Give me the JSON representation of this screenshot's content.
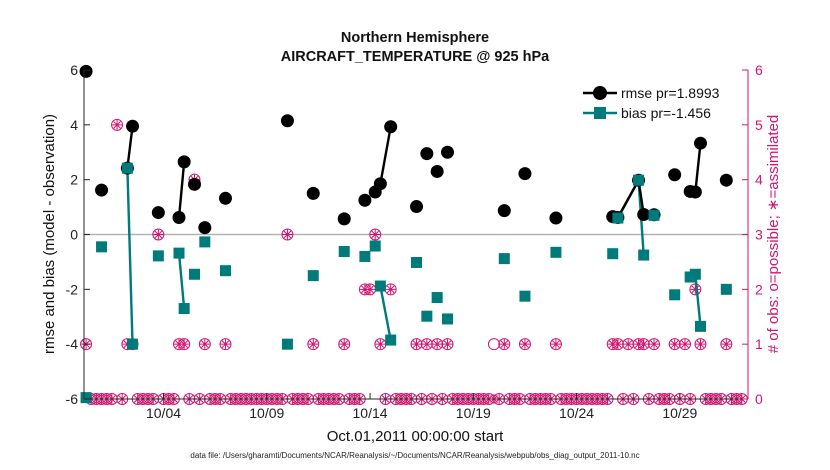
{
  "chart_data": {
    "type": "scatter",
    "title": "Northern Hemisphere",
    "subtitle": "AIRCRAFT_TEMPERATURE @ 925 hPa",
    "xlabel": "Oct.01,2011 00:00:00 start",
    "ylabel": "rmse and bias (model - observation)",
    "ylabel_right": "# of obs: o=possible; ∗=assimilated",
    "footnote": "data file: /Users/gharamti/Documents/NCAR/Reanalysis/~/Documents/NCAR/Reanalysis/webpub/obs_diag_output_2011-10.nc",
    "xlim": [
      0.15,
      32.3
    ],
    "ylim": [
      -6,
      6
    ],
    "ylim_right": [
      0,
      6
    ],
    "x_tick_values": [
      4,
      9,
      14,
      19,
      24,
      29
    ],
    "x_tick_labels": [
      "10/04",
      "10/09",
      "10/14",
      "10/19",
      "10/24",
      "10/29"
    ],
    "y_ticks": [
      -6,
      -4,
      -2,
      0,
      2,
      4,
      6
    ],
    "y_ticks_right": [
      0,
      1,
      2,
      3,
      4,
      5,
      6
    ],
    "legend_position": "top-right",
    "colors": {
      "rmse": "#000000",
      "bias": "#007a7a",
      "obs": "#d1166f",
      "zero_line": "#b3b3b3",
      "axes": "#262626"
    },
    "series": [
      {
        "name": "rmse pr=1.8993",
        "marker": "circle",
        "points": [
          [
            0.25,
            5.95
          ],
          [
            1,
            1.62
          ],
          [
            2.25,
            2.42
          ],
          [
            2.5,
            3.95
          ],
          [
            3.75,
            0.8
          ],
          [
            4.75,
            0.62
          ],
          [
            5,
            2.65
          ],
          [
            5.5,
            1.83
          ],
          [
            6,
            0.25
          ],
          [
            7,
            1.32
          ],
          [
            10,
            4.15
          ],
          [
            11.25,
            1.5
          ],
          [
            12.75,
            0.57
          ],
          [
            13.75,
            1.25
          ],
          [
            14.25,
            1.55
          ],
          [
            14.5,
            1.85
          ],
          [
            15,
            3.93
          ],
          [
            16.25,
            1.02
          ],
          [
            16.75,
            2.95
          ],
          [
            17.25,
            2.3
          ],
          [
            17.75,
            3.0
          ],
          [
            20.5,
            0.87
          ],
          [
            21.5,
            2.22
          ],
          [
            23,
            0.6
          ],
          [
            25.75,
            0.65
          ],
          [
            26,
            0.62
          ],
          [
            27,
            1.98
          ],
          [
            27.25,
            0.73
          ],
          [
            27.75,
            0.72
          ],
          [
            28.75,
            2.18
          ],
          [
            29.5,
            1.57
          ],
          [
            29.75,
            1.55
          ],
          [
            30,
            3.33
          ],
          [
            31.25,
            1.98
          ]
        ],
        "segments": [
          [
            2,
            3
          ],
          [
            5,
            6
          ],
          [
            15,
            16
          ],
          [
            25,
            26
          ],
          [
            26,
            27
          ],
          [
            31,
            32
          ]
        ]
      },
      {
        "name": "bias pr=-1.456",
        "marker": "square",
        "points": [
          [
            0.25,
            -5.95
          ],
          [
            1,
            -0.45
          ],
          [
            2.25,
            2.42
          ],
          [
            2.5,
            -4.0
          ],
          [
            3.75,
            -0.78
          ],
          [
            4.75,
            -0.68
          ],
          [
            5,
            -2.7
          ],
          [
            5.5,
            -1.45
          ],
          [
            6,
            -0.27
          ],
          [
            7,
            -1.32
          ],
          [
            10,
            -4.0
          ],
          [
            11.25,
            -1.5
          ],
          [
            12.75,
            -0.62
          ],
          [
            13.75,
            -0.8
          ],
          [
            14.25,
            -0.42
          ],
          [
            14.5,
            -1.88
          ],
          [
            15,
            -3.85
          ],
          [
            16.25,
            -1.02
          ],
          [
            16.75,
            -2.98
          ],
          [
            17.25,
            -2.3
          ],
          [
            17.75,
            -3.08
          ],
          [
            20.5,
            -0.88
          ],
          [
            21.5,
            -2.25
          ],
          [
            23,
            -0.65
          ],
          [
            25.75,
            -0.7
          ],
          [
            26,
            0.6
          ],
          [
            27,
            1.98
          ],
          [
            27.25,
            -0.75
          ],
          [
            27.75,
            0.7
          ],
          [
            28.75,
            -2.2
          ],
          [
            29.5,
            -1.55
          ],
          [
            29.75,
            -1.45
          ],
          [
            30,
            -3.35
          ],
          [
            31.25,
            -2.0
          ]
        ],
        "segments": [
          [
            2,
            3
          ],
          [
            5,
            6
          ],
          [
            15,
            16
          ],
          [
            25,
            26
          ],
          [
            26,
            27
          ],
          [
            31,
            32
          ]
        ]
      }
    ],
    "obs_possible": [
      [
        0.25,
        1
      ],
      [
        0.5,
        0
      ],
      [
        0.75,
        0
      ],
      [
        1,
        0
      ],
      [
        1.25,
        0
      ],
      [
        1.5,
        0
      ],
      [
        1.75,
        5
      ],
      [
        2,
        0
      ],
      [
        2.25,
        1
      ],
      [
        2.5,
        1
      ],
      [
        2.75,
        0
      ],
      [
        3,
        0
      ],
      [
        3.25,
        0
      ],
      [
        3.5,
        0
      ],
      [
        3.75,
        3
      ],
      [
        4,
        0
      ],
      [
        4.25,
        0
      ],
      [
        4.5,
        0
      ],
      [
        4.75,
        1
      ],
      [
        5,
        1
      ],
      [
        5.25,
        0
      ],
      [
        5.5,
        4
      ],
      [
        5.75,
        0
      ],
      [
        6,
        1
      ],
      [
        6.25,
        0
      ],
      [
        6.5,
        0
      ],
      [
        6.75,
        0
      ],
      [
        7,
        1
      ],
      [
        7.25,
        0
      ],
      [
        7.5,
        0
      ],
      [
        7.75,
        0
      ],
      [
        8,
        0
      ],
      [
        8.25,
        0
      ],
      [
        8.5,
        0
      ],
      [
        8.75,
        0
      ],
      [
        9,
        0
      ],
      [
        9.25,
        0
      ],
      [
        9.5,
        0
      ],
      [
        9.75,
        0
      ],
      [
        10,
        3
      ],
      [
        10.25,
        0
      ],
      [
        10.5,
        0
      ],
      [
        10.75,
        0
      ],
      [
        11,
        0
      ],
      [
        11.25,
        1
      ],
      [
        11.5,
        0
      ],
      [
        11.75,
        0
      ],
      [
        12,
        0
      ],
      [
        12.25,
        0
      ],
      [
        12.5,
        0
      ],
      [
        12.75,
        1
      ],
      [
        13,
        0
      ],
      [
        13.25,
        0
      ],
      [
        13.5,
        0
      ],
      [
        13.75,
        2
      ],
      [
        14,
        2
      ],
      [
        14.25,
        3
      ],
      [
        14.5,
        1
      ],
      [
        14.75,
        0
      ],
      [
        15,
        2
      ],
      [
        15.25,
        0
      ],
      [
        15.5,
        0
      ],
      [
        15.75,
        0
      ],
      [
        16,
        0
      ],
      [
        16.25,
        1
      ],
      [
        16.5,
        0
      ],
      [
        16.75,
        1
      ],
      [
        17,
        0
      ],
      [
        17.25,
        1
      ],
      [
        17.5,
        0
      ],
      [
        17.75,
        1
      ],
      [
        18,
        0
      ],
      [
        18.25,
        0
      ],
      [
        18.5,
        0
      ],
      [
        18.75,
        0
      ],
      [
        19,
        0
      ],
      [
        19.25,
        0
      ],
      [
        19.5,
        0
      ],
      [
        19.75,
        0
      ],
      [
        20,
        1
      ],
      [
        20.25,
        0
      ],
      [
        20.5,
        1
      ],
      [
        20.75,
        0
      ],
      [
        21,
        0
      ],
      [
        21.25,
        0
      ],
      [
        21.5,
        1
      ],
      [
        21.75,
        0
      ],
      [
        22,
        0
      ],
      [
        22.25,
        0
      ],
      [
        22.5,
        0
      ],
      [
        22.75,
        0
      ],
      [
        23,
        1
      ],
      [
        23.25,
        0
      ],
      [
        23.5,
        0
      ],
      [
        23.75,
        0
      ],
      [
        24,
        0
      ],
      [
        24.25,
        0
      ],
      [
        24.5,
        0
      ],
      [
        24.75,
        0
      ],
      [
        25,
        0
      ],
      [
        25.25,
        0
      ],
      [
        25.5,
        0
      ],
      [
        25.75,
        1
      ],
      [
        26,
        1
      ],
      [
        26.25,
        0
      ],
      [
        26.5,
        1
      ],
      [
        26.75,
        0
      ],
      [
        27,
        1
      ],
      [
        27.25,
        1
      ],
      [
        27.5,
        0
      ],
      [
        27.75,
        1
      ],
      [
        28,
        0
      ],
      [
        28.25,
        0
      ],
      [
        28.5,
        0
      ],
      [
        28.75,
        1
      ],
      [
        29,
        0
      ],
      [
        29.25,
        1
      ],
      [
        29.5,
        0
      ],
      [
        29.75,
        2
      ],
      [
        30,
        1
      ],
      [
        30.25,
        0
      ],
      [
        30.5,
        0
      ],
      [
        30.75,
        0
      ],
      [
        31,
        0
      ],
      [
        31.25,
        1
      ],
      [
        31.5,
        0
      ],
      [
        31.75,
        0
      ],
      [
        32,
        0
      ]
    ],
    "obs_assimilated": [
      [
        0.25,
        1
      ],
      [
        0.5,
        0
      ],
      [
        0.75,
        0
      ],
      [
        1,
        0
      ],
      [
        1.25,
        0
      ],
      [
        1.5,
        0
      ],
      [
        1.75,
        5
      ],
      [
        2,
        0
      ],
      [
        2.25,
        1
      ],
      [
        2.5,
        1
      ],
      [
        2.75,
        0
      ],
      [
        3,
        0
      ],
      [
        3.25,
        0
      ],
      [
        3.5,
        0
      ],
      [
        3.75,
        3
      ],
      [
        4,
        0
      ],
      [
        4.25,
        0
      ],
      [
        4.5,
        0
      ],
      [
        4.75,
        1
      ],
      [
        5,
        1
      ],
      [
        5.25,
        0
      ],
      [
        5.5,
        4
      ],
      [
        5.75,
        0
      ],
      [
        6,
        1
      ],
      [
        6.25,
        0
      ],
      [
        6.5,
        0
      ],
      [
        6.75,
        0
      ],
      [
        7,
        1
      ],
      [
        7.25,
        0
      ],
      [
        7.5,
        0
      ],
      [
        7.75,
        0
      ],
      [
        8,
        0
      ],
      [
        8.25,
        0
      ],
      [
        8.5,
        0
      ],
      [
        8.75,
        0
      ],
      [
        9,
        0
      ],
      [
        9.25,
        0
      ],
      [
        9.5,
        0
      ],
      [
        9.75,
        0
      ],
      [
        10,
        3
      ],
      [
        10.25,
        0
      ],
      [
        10.5,
        0
      ],
      [
        10.75,
        0
      ],
      [
        11,
        0
      ],
      [
        11.25,
        1
      ],
      [
        11.5,
        0
      ],
      [
        11.75,
        0
      ],
      [
        12,
        0
      ],
      [
        12.25,
        0
      ],
      [
        12.5,
        0
      ],
      [
        12.75,
        1
      ],
      [
        13,
        0
      ],
      [
        13.25,
        0
      ],
      [
        13.5,
        0
      ],
      [
        13.75,
        2
      ],
      [
        14,
        2
      ],
      [
        14.25,
        3
      ],
      [
        14.5,
        1
      ],
      [
        14.75,
        0
      ],
      [
        15,
        2
      ],
      [
        15.25,
        0
      ],
      [
        15.5,
        0
      ],
      [
        15.75,
        0
      ],
      [
        16,
        0
      ],
      [
        16.25,
        1
      ],
      [
        16.5,
        0
      ],
      [
        16.75,
        1
      ],
      [
        17,
        0
      ],
      [
        17.25,
        1
      ],
      [
        17.5,
        0
      ],
      [
        17.75,
        1
      ],
      [
        18,
        0
      ],
      [
        18.25,
        0
      ],
      [
        18.5,
        0
      ],
      [
        18.75,
        0
      ],
      [
        19,
        0
      ],
      [
        19.25,
        0
      ],
      [
        19.5,
        0
      ],
      [
        19.75,
        0
      ],
      [
        20,
        0
      ],
      [
        20.25,
        0
      ],
      [
        20.5,
        1
      ],
      [
        20.75,
        0
      ],
      [
        21,
        0
      ],
      [
        21.25,
        0
      ],
      [
        21.5,
        1
      ],
      [
        21.75,
        0
      ],
      [
        22,
        0
      ],
      [
        22.25,
        0
      ],
      [
        22.5,
        0
      ],
      [
        22.75,
        0
      ],
      [
        23,
        1
      ],
      [
        23.25,
        0
      ],
      [
        23.5,
        0
      ],
      [
        23.75,
        0
      ],
      [
        24,
        0
      ],
      [
        24.25,
        0
      ],
      [
        24.5,
        0
      ],
      [
        24.75,
        0
      ],
      [
        25,
        0
      ],
      [
        25.25,
        0
      ],
      [
        25.5,
        0
      ],
      [
        25.75,
        1
      ],
      [
        26,
        1
      ],
      [
        26.25,
        0
      ],
      [
        26.5,
        1
      ],
      [
        26.75,
        0
      ],
      [
        27,
        1
      ],
      [
        27.25,
        1
      ],
      [
        27.5,
        0
      ],
      [
        27.75,
        1
      ],
      [
        28,
        0
      ],
      [
        28.25,
        0
      ],
      [
        28.5,
        0
      ],
      [
        28.75,
        1
      ],
      [
        29,
        0
      ],
      [
        29.25,
        1
      ],
      [
        29.5,
        0
      ],
      [
        29.75,
        2
      ],
      [
        30,
        1
      ],
      [
        30.25,
        0
      ],
      [
        30.5,
        0
      ],
      [
        30.75,
        0
      ],
      [
        31,
        0
      ],
      [
        31.25,
        1
      ],
      [
        31.5,
        0
      ],
      [
        31.75,
        0
      ],
      [
        32,
        0
      ]
    ]
  }
}
